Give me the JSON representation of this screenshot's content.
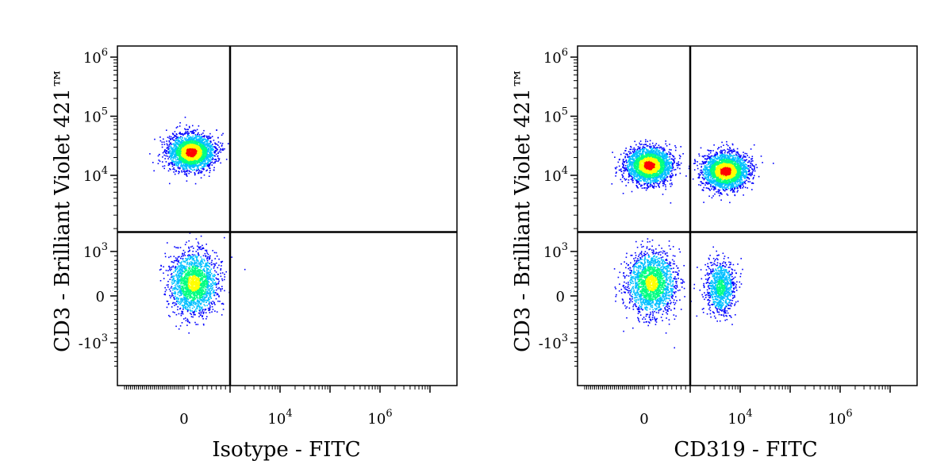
{
  "chart_data": [
    {
      "type": "scatter",
      "subtype": "flow-cytometry-density-dot-plot",
      "xlabel": "Isotype - FITC",
      "ylabel": "CD3 - Brilliant Violet 421™",
      "x_ticks": [
        "0",
        "10^4",
        "10^6"
      ],
      "y_ticks": [
        "10^6",
        "10^5",
        "10^4",
        "10^3",
        "0",
        "-10^3"
      ],
      "quadrant_gate": {
        "x": 1000,
        "y": 1800
      },
      "populations": [
        {
          "name": "CD3+ / FITC-",
          "x_center": 150,
          "y_center": 25000,
          "relative_density": "high"
        },
        {
          "name": "CD3- / FITC-",
          "x_center": 200,
          "y_center": 300,
          "relative_density": "medium"
        }
      ],
      "colormap": [
        "#0000ff",
        "#00c0ff",
        "#00ff80",
        "#ffff00",
        "#ff0000"
      ]
    },
    {
      "type": "scatter",
      "subtype": "flow-cytometry-density-dot-plot",
      "xlabel": "CD319 - FITC",
      "ylabel": "CD3 - Brilliant Violet 421™",
      "x_ticks": [
        "0",
        "10^4",
        "10^6"
      ],
      "y_ticks": [
        "10^6",
        "10^5",
        "10^4",
        "10^3",
        "0",
        "-10^3"
      ],
      "quadrant_gate": {
        "x": 1000,
        "y": 1800
      },
      "populations": [
        {
          "name": "CD3+ / CD319-",
          "x_center": 100,
          "y_center": 15000,
          "relative_density": "high"
        },
        {
          "name": "CD3+ / CD319+",
          "x_center": 5000,
          "y_center": 12000,
          "relative_density": "high"
        },
        {
          "name": "CD3- / CD319-",
          "x_center": 150,
          "y_center": 300,
          "relative_density": "medium"
        },
        {
          "name": "CD3- / CD319+",
          "x_center": 4000,
          "y_center": 200,
          "relative_density": "low"
        }
      ],
      "colormap": [
        "#0000ff",
        "#00c0ff",
        "#00ff80",
        "#ffff00",
        "#ff0000"
      ]
    }
  ]
}
